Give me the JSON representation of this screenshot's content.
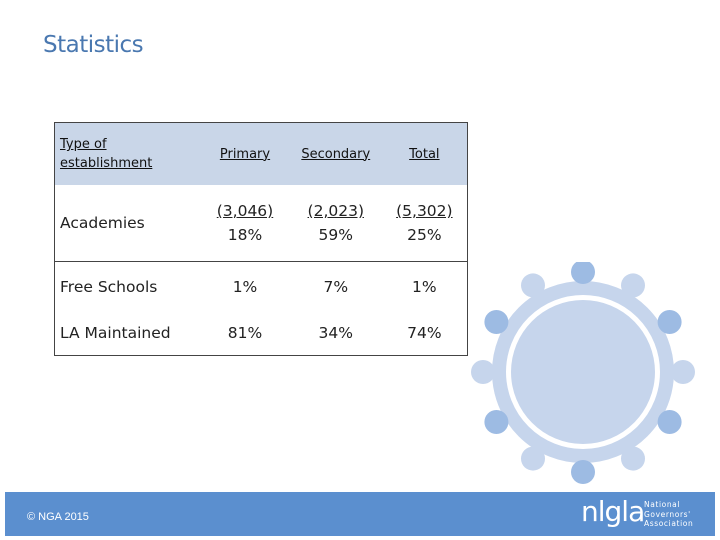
{
  "slide": {
    "title": "Statistics"
  },
  "table": {
    "headers": {
      "type": "Type of establishment",
      "primary": "Primary",
      "secondary": "Secondary",
      "total": "Total"
    },
    "rows": [
      {
        "label": "Academies",
        "primary_count": "(3,046)",
        "primary": "18%",
        "secondary_count": "(2,023)",
        "secondary": "59%",
        "total_count": "(5,302)",
        "total": "25%"
      },
      {
        "label": "Free Schools",
        "primary": "1%",
        "secondary": "7%",
        "total": "1%"
      },
      {
        "label": "LA Maintained",
        "primary": "81%",
        "secondary": "34%",
        "total": "74%"
      }
    ]
  },
  "footer": {
    "copyright": "© NGA 2015",
    "logo_mark": "nlgla",
    "logo_line1": "National",
    "logo_line2": "Governors'",
    "logo_line3": "Association"
  },
  "decoration": {
    "icon": "people-circle-icon",
    "color_light": "#c6d5ec",
    "color_dark": "#9dbbe3"
  },
  "colors": {
    "title": "#4a78b0",
    "header_fill": "#c9d6e8",
    "footer": "#5b8fcf"
  }
}
